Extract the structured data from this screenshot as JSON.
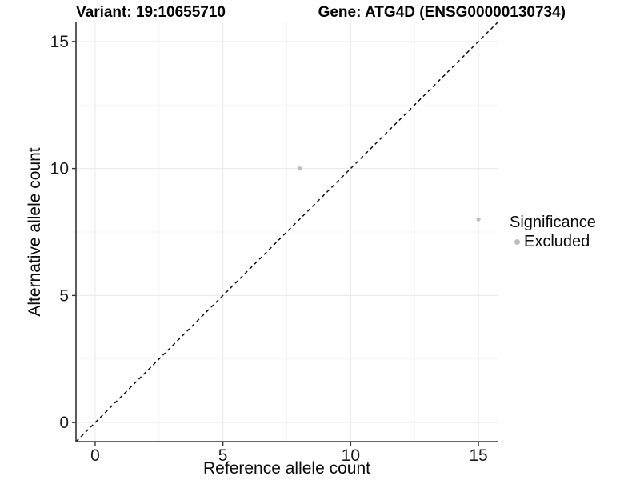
{
  "titles": {
    "variant": "Variant: 19:10655710",
    "gene": "Gene: ATG4D (ENSG00000130734)"
  },
  "legend": {
    "title": "Significance",
    "items": [
      {
        "label": "Excluded",
        "color": "#bdbdbd"
      }
    ]
  },
  "chart_data": {
    "type": "scatter",
    "title": "Variant: 19:10655710    Gene: ATG4D (ENSG00000130734)",
    "xlabel": "Reference allele count",
    "ylabel": "Alternative allele count",
    "xlim": [
      -0.75,
      15.75
    ],
    "ylim": [
      -0.75,
      15.75
    ],
    "x_ticks": [
      0,
      5,
      10,
      15
    ],
    "y_ticks": [
      0,
      5,
      10,
      15
    ],
    "x_minor_ticks": [
      2.5,
      7.5,
      12.5
    ],
    "y_minor_ticks": [
      2.5,
      7.5,
      12.5
    ],
    "grid": true,
    "legend_position": "right",
    "series": [
      {
        "name": "Excluded",
        "color": "#bdbdbd",
        "points": [
          {
            "x": 8,
            "y": 10
          },
          {
            "x": 15,
            "y": 8
          }
        ]
      }
    ],
    "reference_line": {
      "type": "identity",
      "style": "dashed",
      "color": "#000000"
    },
    "colors": {
      "grid_major": "#e9e9e9",
      "grid_minor": "#f5f5f5",
      "axis_line": "#333333",
      "tick_label": "#1a1a1a",
      "point": "#bdbdbd"
    }
  }
}
